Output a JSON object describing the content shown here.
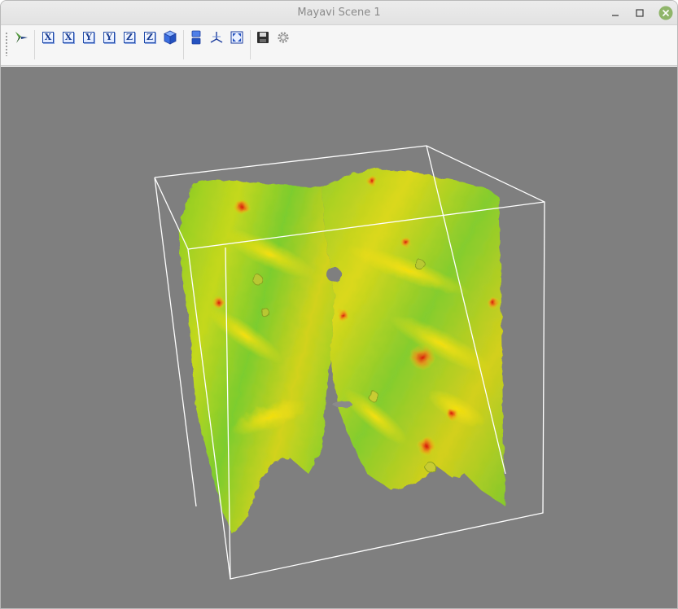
{
  "window": {
    "title": "Mayavi Scene 1",
    "controls": [
      "minimize-icon",
      "maximize-icon",
      "close-icon"
    ]
  },
  "toolbar": {
    "buttons": [
      {
        "name": "mayavi-pipeline-button",
        "icon": "mayavi-icon"
      },
      {
        "name": "view-plus-x-button",
        "icon": "axis-view-icon",
        "label": "X"
      },
      {
        "name": "view-minus-x-button",
        "icon": "axis-view-icon",
        "label": "X"
      },
      {
        "name": "view-plus-y-button",
        "icon": "axis-view-icon",
        "label": "Y"
      },
      {
        "name": "view-minus-y-button",
        "icon": "axis-view-icon",
        "label": "Y"
      },
      {
        "name": "view-plus-z-button",
        "icon": "axis-view-icon",
        "label": "Z"
      },
      {
        "name": "view-minus-z-button",
        "icon": "axis-view-icon",
        "label": "Z"
      },
      {
        "name": "isometric-view-button",
        "icon": "cube-icon"
      },
      {
        "name": "parallel-projection-button",
        "icon": "projection-icon"
      },
      {
        "name": "toggle-axes-button",
        "icon": "axes-icon"
      },
      {
        "name": "full-screen-button",
        "icon": "fullscreen-icon"
      },
      {
        "name": "save-scene-button",
        "icon": "save-icon"
      },
      {
        "name": "configure-scene-button",
        "icon": "gear-icon"
      }
    ]
  },
  "scene": {
    "background": "#7f7f7f",
    "outline_color": "#ffffff",
    "colormap": [
      "#7dd821",
      "#c6e21a",
      "#e6dc12",
      "#f0a019",
      "#d81a0a"
    ]
  }
}
